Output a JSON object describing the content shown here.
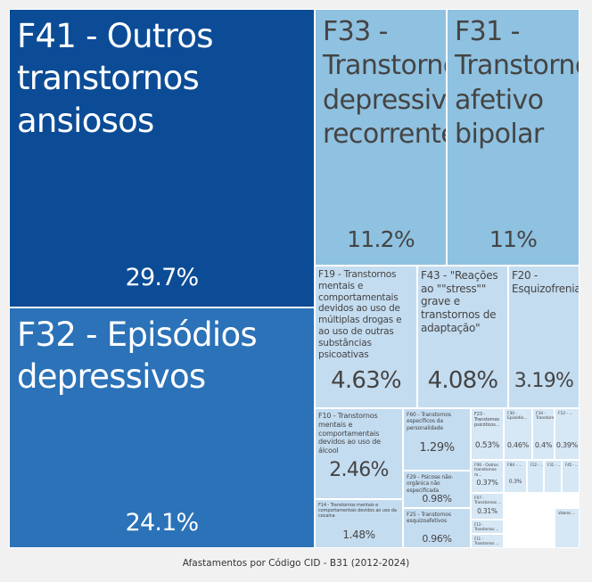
{
  "caption": "Afastamentos por Código CID - B31 (2012-2024)",
  "colors": {
    "dark_blue": "#0c4c97",
    "mid_blue": "#2b72b8",
    "light_blue": "#8fc1e0",
    "pale_blue": "#c4dcf0",
    "paler_blue": "#d6e7f5",
    "text_light": "#ffffff",
    "text_dark": "#444444"
  },
  "chart_data": {
    "type": "treemap",
    "title": "",
    "tiles": [
      {
        "label": "F41 - Outros transtornos ansiosos",
        "value": 29.7,
        "display": "29.7%"
      },
      {
        "label": "F32 - Episódios depressivos",
        "value": 24.1,
        "display": "24.1%"
      },
      {
        "label": "F33 - Transtorno depressivo recorrente",
        "value": 11.2,
        "display": "11.2%"
      },
      {
        "label": "F31 - Transtorno afetivo bipolar",
        "value": 11,
        "display": "11%"
      },
      {
        "label": "F19 - Transtornos mentais e comportamentais devidos ao uso de múltiplas drogas e ao uso de outras substâncias psicoativas",
        "value": 4.63,
        "display": "4.63%"
      },
      {
        "label": "F43 - \"Reações ao \"\"stress\"\" grave e transtornos de adaptação\"",
        "value": 4.08,
        "display": "4.08%"
      },
      {
        "label": "F20 - Esquizofrenia",
        "value": 3.19,
        "display": "3.19%"
      },
      {
        "label": "F10 - Transtornos mentais e comportamentais devidos ao uso de álcool",
        "value": 2.46,
        "display": "2.46%"
      },
      {
        "label": "F14 - Transtornos mentais e comportamentais devidos ao uso da cocaína",
        "value": 1.48,
        "display": "1.48%"
      },
      {
        "label": "F60 - Transtornos específicos da personalidade",
        "value": 1.29,
        "display": "1.29%"
      },
      {
        "label": "F29 - Psicose não-orgânica não especificada",
        "value": 0.98,
        "display": "0.98%"
      },
      {
        "label": "F25 - Transtornos esquizoafetivos",
        "value": 0.96,
        "display": "0.96%"
      },
      {
        "label": "F23 - Transtornos psicóticos...",
        "value": 0.53,
        "display": "0.53%"
      },
      {
        "label": "F06 - Outros transtornos m...",
        "value": 0.37,
        "display": "0.37%"
      },
      {
        "label": "F07 - Transtornos ...",
        "value": 0.31,
        "display": "0.31%"
      },
      {
        "label": "F13 - Transtornos ...",
        "value": 0.28,
        "display": ""
      },
      {
        "label": "F11 - Transtornos ...",
        "value": 0.22,
        "display": ""
      },
      {
        "label": "F30 - Episódio...",
        "value": 0.46,
        "display": "0.46%"
      },
      {
        "label": "F34 - Transtornos...",
        "value": 0.4,
        "display": "0.4%"
      },
      {
        "label": "F12 - ...",
        "value": 0.39,
        "display": "0.39%"
      },
      {
        "label": "F84 - ...",
        "value": 0.3,
        "display": "0.3%"
      },
      {
        "label": "F22 - ...",
        "value": 0.12,
        "display": ""
      },
      {
        "label": "F31 - ...",
        "value": 0.1,
        "display": ""
      },
      {
        "label": "F45 - ...",
        "value": 0.09,
        "display": ""
      },
      {
        "label": "Valores ...",
        "value": 0.08,
        "display": ""
      }
    ]
  }
}
